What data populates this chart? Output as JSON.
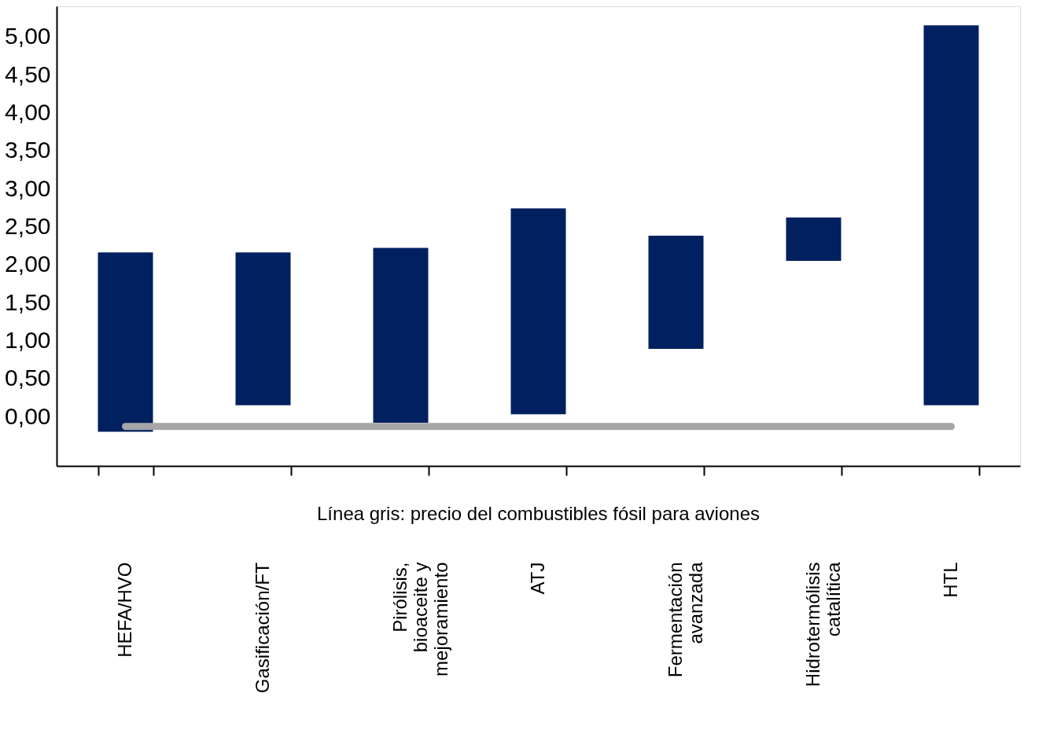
{
  "chart_data": {
    "type": "bar",
    "categories": [
      "HEFA/HVO",
      "Gasificación/FT",
      "Pirólisis,\nbioaceite y\nmejoramiento",
      "ATJ",
      "Fermentación\navanzada",
      "Hidrotermólisis\ncatalítica",
      "HTL"
    ],
    "base": [
      -0.2,
      0.15,
      -0.08,
      0.03,
      0.89,
      2.05,
      0.15
    ],
    "values": [
      2.36,
      2.01,
      2.3,
      2.71,
      1.49,
      0.57,
      5.0
    ],
    "color": "#002060",
    "ylim": [
      -0.65,
      5.4
    ],
    "yticks": [
      {
        "value": 0,
        "label": "0,00"
      },
      {
        "value": 0.5,
        "label": "0,50"
      },
      {
        "value": 1,
        "label": "1,00"
      },
      {
        "value": 1.5,
        "label": "1,50"
      },
      {
        "value": 2,
        "label": "2,00"
      },
      {
        "value": 2.5,
        "label": "2,50"
      },
      {
        "value": 3,
        "label": "3,00"
      },
      {
        "value": 3.5,
        "label": "3,50"
      },
      {
        "value": 4,
        "label": "4,00"
      },
      {
        "value": 4.5,
        "label": "4,50"
      },
      {
        "value": 5,
        "label": "5,00"
      }
    ],
    "ref_lines": [
      {
        "axis": "y",
        "value": -0.13,
        "color": "#a6a6a6"
      }
    ],
    "annotations": [
      "Línea gris: precio del combustibles fósil para aviones"
    ],
    "grid": false
  }
}
